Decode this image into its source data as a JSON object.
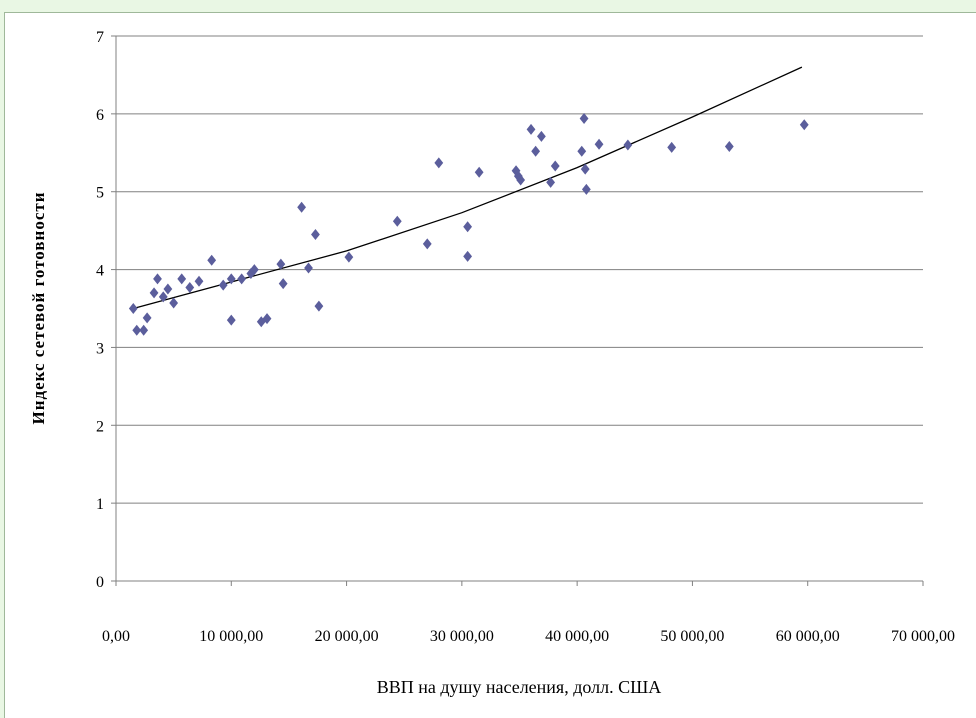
{
  "chart_data": {
    "type": "scatter",
    "title": "",
    "xlabel": "ВВП на душу населения, долл. США",
    "ylabel": "Индекс сетевой готовности",
    "xlim": [
      0,
      70000
    ],
    "ylim": [
      0,
      7
    ],
    "x_tick_labels": [
      "0,00",
      "10 000,00",
      "20 000,00",
      "30 000,00",
      "40 000,00",
      "50 000,00",
      "60 000,00",
      "70 000,00"
    ],
    "y_tick_labels": [
      "0",
      "1",
      "2",
      "3",
      "4",
      "5",
      "6",
      "7"
    ],
    "grid": "horizontal",
    "marker": "diamond",
    "marker_color": "#5b5e9c",
    "trendline": {
      "type": "polynomial",
      "x": [
        1500,
        10000,
        20000,
        30000,
        40000,
        50000,
        59500
      ],
      "y": [
        3.5,
        3.84,
        4.24,
        4.73,
        5.31,
        5.96,
        6.6
      ]
    },
    "series": [
      {
        "points": [
          [
            1500,
            3.5
          ],
          [
            1800,
            3.22
          ],
          [
            2400,
            3.22
          ],
          [
            2700,
            3.38
          ],
          [
            3300,
            3.7
          ],
          [
            3600,
            3.88
          ],
          [
            4100,
            3.65
          ],
          [
            4500,
            3.75
          ],
          [
            5000,
            3.57
          ],
          [
            5700,
            3.88
          ],
          [
            6400,
            3.77
          ],
          [
            7200,
            3.85
          ],
          [
            8300,
            4.12
          ],
          [
            9300,
            3.8
          ],
          [
            10000,
            3.88
          ],
          [
            10000,
            3.35
          ],
          [
            10900,
            3.88
          ],
          [
            11700,
            3.95
          ],
          [
            12000,
            4.0
          ],
          [
            12600,
            3.33
          ],
          [
            13100,
            3.37
          ],
          [
            14300,
            4.07
          ],
          [
            14500,
            3.82
          ],
          [
            16100,
            4.8
          ],
          [
            16700,
            4.02
          ],
          [
            17300,
            4.45
          ],
          [
            17600,
            3.53
          ],
          [
            20200,
            4.16
          ],
          [
            24400,
            4.62
          ],
          [
            27000,
            4.33
          ],
          [
            28000,
            5.37
          ],
          [
            30500,
            4.55
          ],
          [
            30500,
            4.17
          ],
          [
            31500,
            5.25
          ],
          [
            34700,
            5.27
          ],
          [
            34900,
            5.2
          ],
          [
            35100,
            5.15
          ],
          [
            36000,
            5.8
          ],
          [
            36400,
            5.52
          ],
          [
            36900,
            5.71
          ],
          [
            37700,
            5.12
          ],
          [
            38100,
            5.33
          ],
          [
            40400,
            5.52
          ],
          [
            40600,
            5.94
          ],
          [
            40700,
            5.29
          ],
          [
            40800,
            5.03
          ],
          [
            41900,
            5.61
          ],
          [
            44400,
            5.6
          ],
          [
            48200,
            5.57
          ],
          [
            53200,
            5.58
          ],
          [
            59700,
            5.86
          ]
        ]
      }
    ]
  }
}
